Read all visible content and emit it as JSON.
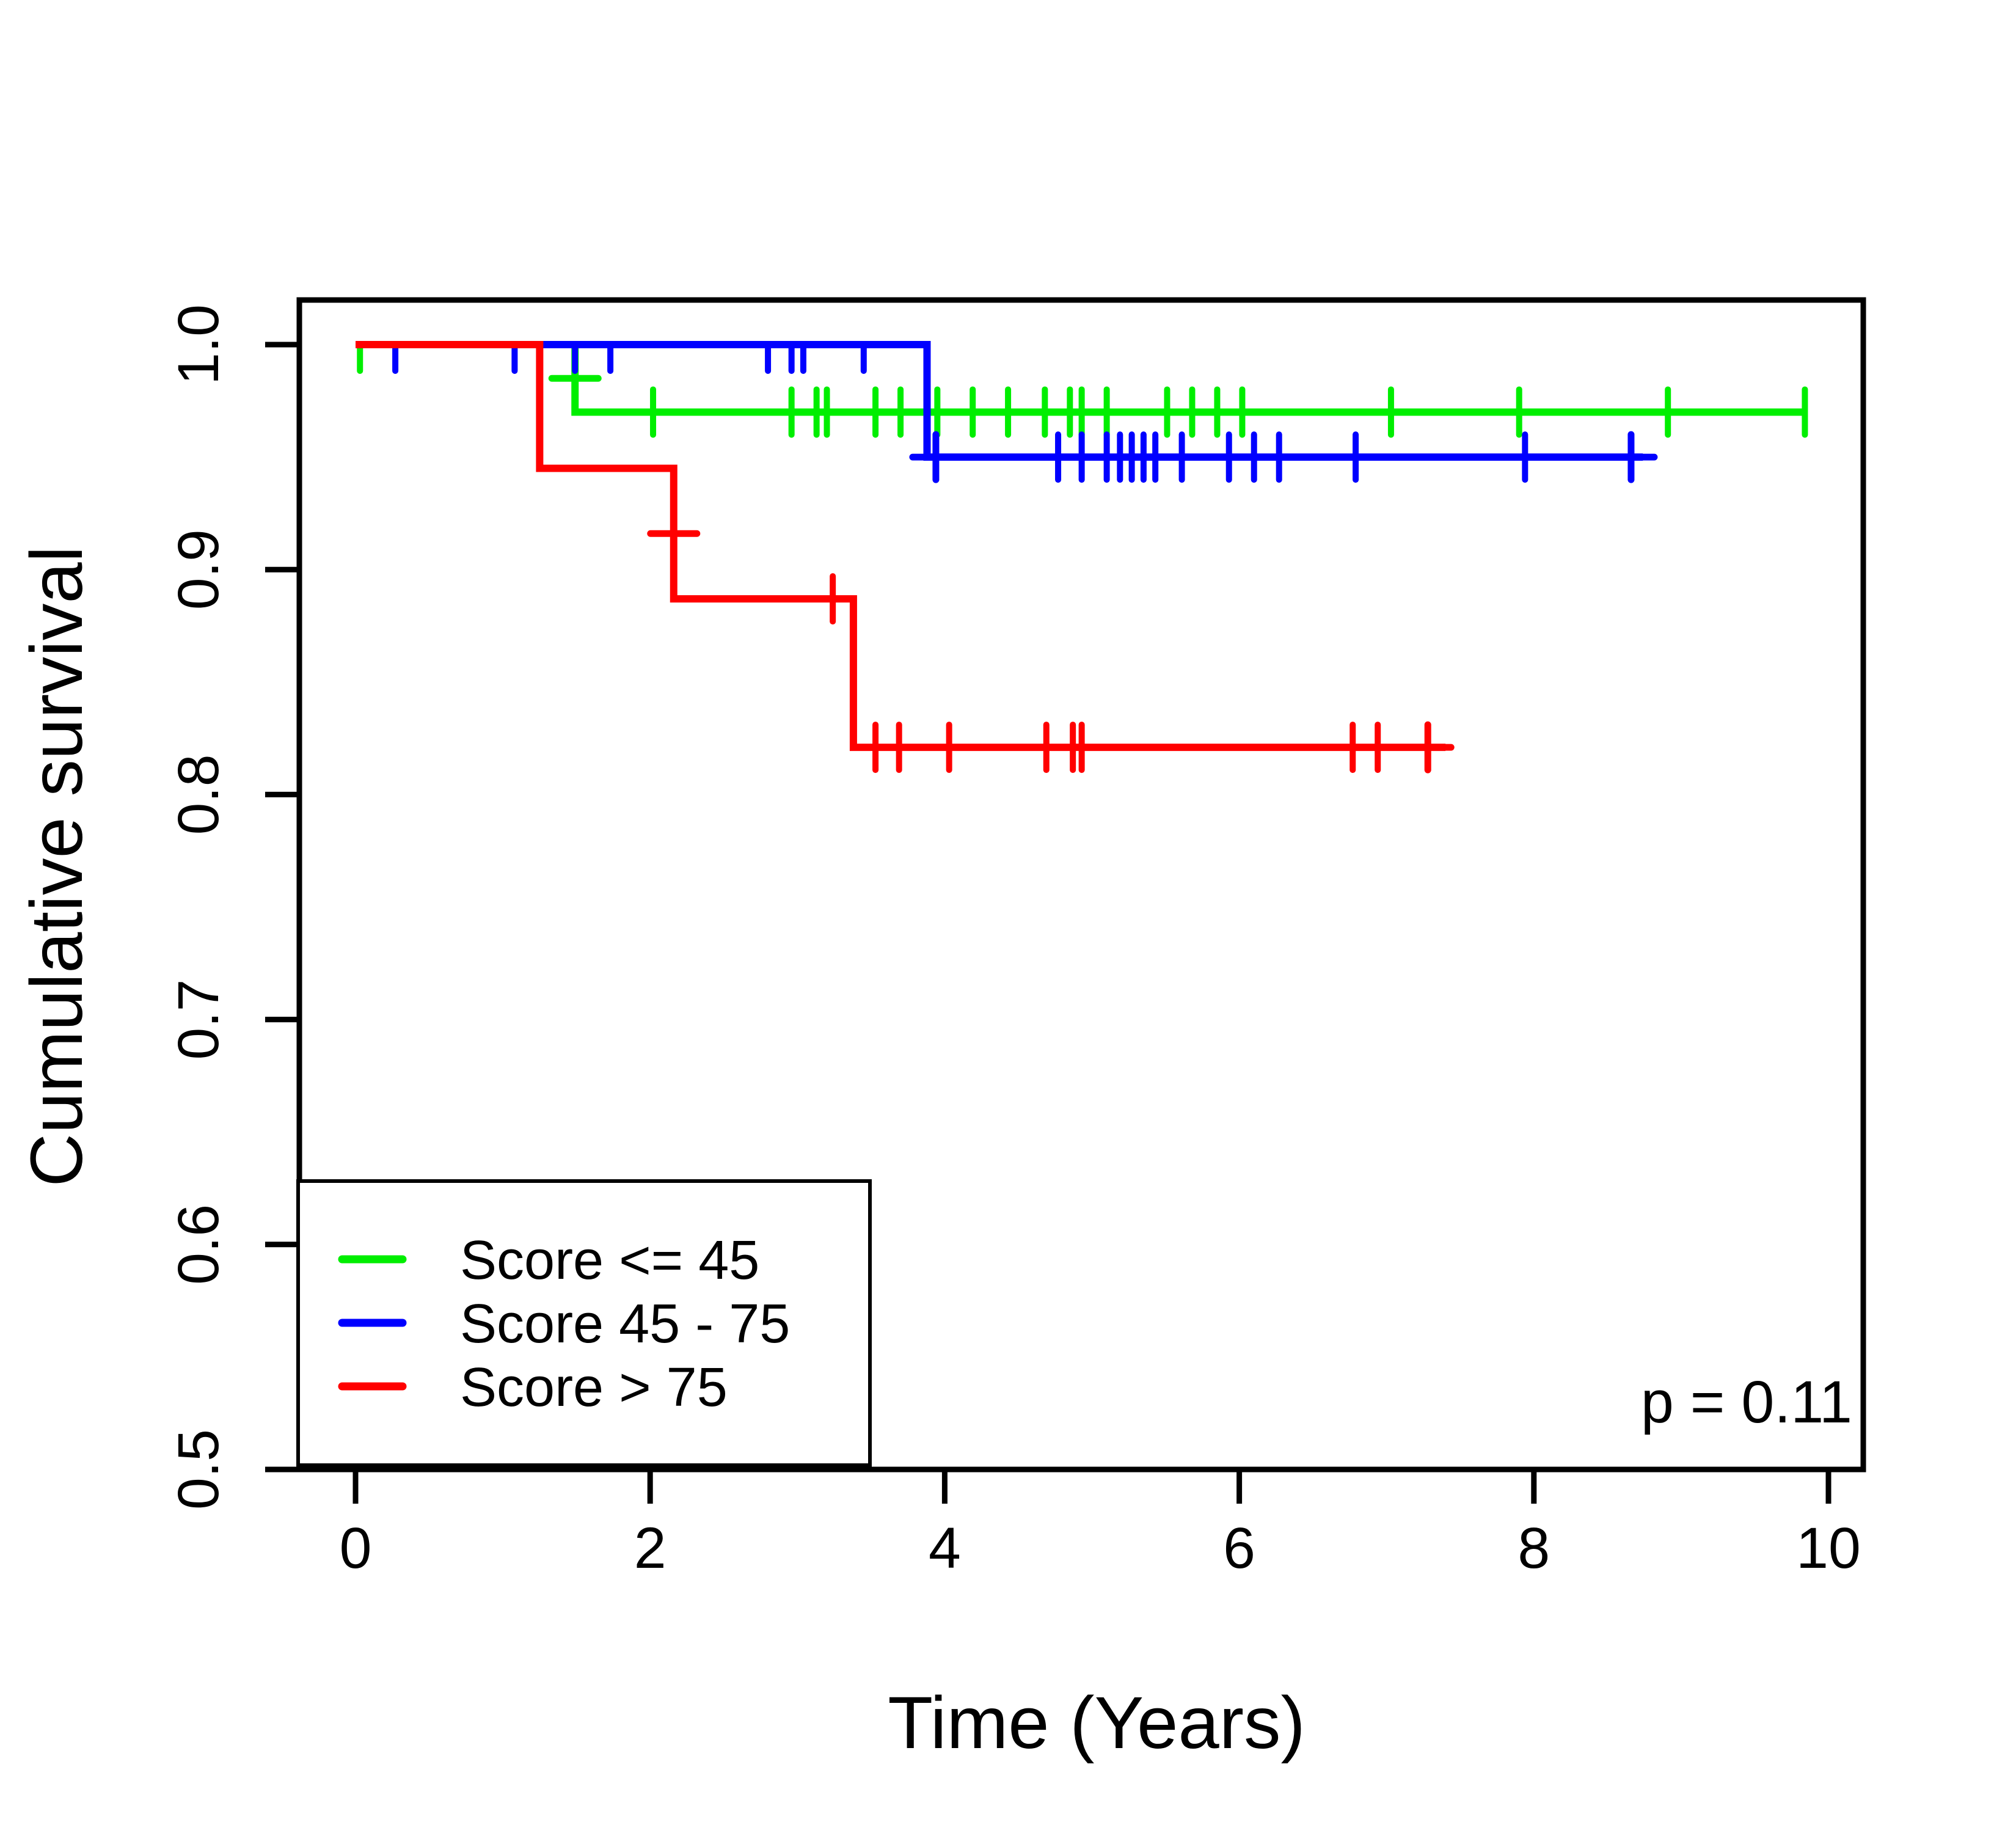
{
  "figure": {
    "kind": "kaplan-meier-survival-plot",
    "background_color": "#ffffff",
    "frame_color": "#000000"
  },
  "chart_data": {
    "type": "line",
    "subtype": "kaplan-meier-step",
    "title": "",
    "xlabel": "Time (Years)",
    "ylabel": "Cumulative survival",
    "xlim": [
      0,
      10
    ],
    "ylim": [
      0.5,
      1.0
    ],
    "grid": false,
    "legend_position": "bottom-left",
    "x_ticks": {
      "values": [
        0,
        2,
        4,
        6,
        8,
        10
      ],
      "labels": [
        "0",
        "2",
        "4",
        "6",
        "8",
        "10"
      ]
    },
    "y_ticks": {
      "values": [
        1.0,
        0.9,
        0.8,
        0.7,
        0.6,
        0.5
      ],
      "labels": [
        "1.0",
        "0.9",
        "0.8",
        "0.7",
        "0.6",
        "0.5"
      ]
    },
    "annotation": {
      "text": "p = 0.11",
      "x": 9.6,
      "y": 0.521
    },
    "legend": {
      "entries": [
        {
          "label": "Score <= 45",
          "color": "#00ee00"
        },
        {
          "label": "Score 45 - 75",
          "color": "#0000ff"
        },
        {
          "label": "Score > 75",
          "color": "#ff0000"
        }
      ]
    },
    "series": [
      {
        "name": "Score <= 45",
        "color": "#00ee00",
        "steps": [
          [
            0,
            1.0
          ],
          [
            1.49,
            1.0
          ],
          [
            1.49,
            0.97
          ],
          [
            9.85,
            0.97
          ]
        ],
        "censors": [
          {
            "x": 0.03,
            "y": 1.0,
            "style": "below"
          },
          {
            "x": 1.49,
            "y": 0.985,
            "style": "plus"
          },
          {
            "x": 2.02,
            "y": 0.97,
            "style": "tick"
          },
          {
            "x": 2.96,
            "y": 0.97,
            "style": "tick"
          },
          {
            "x": 3.13,
            "y": 0.97,
            "style": "tick"
          },
          {
            "x": 3.2,
            "y": 0.97,
            "style": "tick"
          },
          {
            "x": 3.53,
            "y": 0.97,
            "style": "tick"
          },
          {
            "x": 3.7,
            "y": 0.97,
            "style": "tick"
          },
          {
            "x": 3.95,
            "y": 0.97,
            "style": "tick"
          },
          {
            "x": 4.19,
            "y": 0.97,
            "style": "tick"
          },
          {
            "x": 4.43,
            "y": 0.97,
            "style": "tick"
          },
          {
            "x": 4.68,
            "y": 0.97,
            "style": "tick"
          },
          {
            "x": 4.85,
            "y": 0.97,
            "style": "tick"
          },
          {
            "x": 4.93,
            "y": 0.97,
            "style": "tick"
          },
          {
            "x": 5.1,
            "y": 0.97,
            "style": "tick"
          },
          {
            "x": 5.51,
            "y": 0.97,
            "style": "tick"
          },
          {
            "x": 5.68,
            "y": 0.97,
            "style": "tick"
          },
          {
            "x": 5.85,
            "y": 0.97,
            "style": "tick"
          },
          {
            "x": 6.02,
            "y": 0.97,
            "style": "tick"
          },
          {
            "x": 7.03,
            "y": 0.97,
            "style": "tick"
          },
          {
            "x": 7.9,
            "y": 0.97,
            "style": "tick"
          },
          {
            "x": 8.91,
            "y": 0.97,
            "style": "tick"
          },
          {
            "x": 9.84,
            "y": 0.97,
            "style": "tick"
          }
        ]
      },
      {
        "name": "Score 45 - 75",
        "color": "#0000ff",
        "steps": [
          [
            0,
            1.0
          ],
          [
            3.88,
            1.0
          ],
          [
            3.88,
            0.95
          ],
          [
            8.74,
            0.95
          ]
        ],
        "censors": [
          {
            "x": 0.27,
            "y": 1.0,
            "style": "below"
          },
          {
            "x": 1.08,
            "y": 1.0,
            "style": "below"
          },
          {
            "x": 1.49,
            "y": 1.0,
            "style": "below"
          },
          {
            "x": 1.73,
            "y": 1.0,
            "style": "below"
          },
          {
            "x": 2.8,
            "y": 1.0,
            "style": "below"
          },
          {
            "x": 2.96,
            "y": 1.0,
            "style": "below"
          },
          {
            "x": 3.04,
            "y": 1.0,
            "style": "below"
          },
          {
            "x": 3.45,
            "y": 1.0,
            "style": "below"
          },
          {
            "x": 3.94,
            "y": 0.95,
            "style": "plus"
          },
          {
            "x": 4.77,
            "y": 0.95,
            "style": "tick"
          },
          {
            "x": 4.93,
            "y": 0.95,
            "style": "tick"
          },
          {
            "x": 5.1,
            "y": 0.95,
            "style": "tick"
          },
          {
            "x": 5.19,
            "y": 0.95,
            "style": "tick"
          },
          {
            "x": 5.27,
            "y": 0.95,
            "style": "tick"
          },
          {
            "x": 5.35,
            "y": 0.95,
            "style": "tick"
          },
          {
            "x": 5.43,
            "y": 0.95,
            "style": "tick"
          },
          {
            "x": 5.61,
            "y": 0.95,
            "style": "tick"
          },
          {
            "x": 5.93,
            "y": 0.95,
            "style": "tick"
          },
          {
            "x": 6.1,
            "y": 0.95,
            "style": "tick"
          },
          {
            "x": 6.27,
            "y": 0.95,
            "style": "tick"
          },
          {
            "x": 6.79,
            "y": 0.95,
            "style": "tick"
          },
          {
            "x": 7.94,
            "y": 0.95,
            "style": "tick"
          },
          {
            "x": 8.66,
            "y": 0.95,
            "style": "plus"
          }
        ]
      },
      {
        "name": "Score > 75",
        "color": "#ff0000",
        "steps": [
          [
            0,
            1.0
          ],
          [
            1.25,
            1.0
          ],
          [
            1.25,
            0.945
          ],
          [
            2.16,
            0.945
          ],
          [
            2.16,
            0.887
          ],
          [
            3.38,
            0.887
          ],
          [
            3.38,
            0.821
          ],
          [
            7.4,
            0.821
          ]
        ],
        "censors": [
          {
            "x": 2.16,
            "y": 0.916,
            "style": "plus"
          },
          {
            "x": 3.24,
            "y": 0.887,
            "style": "tick"
          },
          {
            "x": 3.53,
            "y": 0.821,
            "style": "tick"
          },
          {
            "x": 3.69,
            "y": 0.821,
            "style": "tick"
          },
          {
            "x": 4.03,
            "y": 0.821,
            "style": "tick"
          },
          {
            "x": 4.69,
            "y": 0.821,
            "style": "tick"
          },
          {
            "x": 4.87,
            "y": 0.821,
            "style": "tick"
          },
          {
            "x": 4.93,
            "y": 0.821,
            "style": "tick"
          },
          {
            "x": 6.77,
            "y": 0.821,
            "style": "tick"
          },
          {
            "x": 6.94,
            "y": 0.821,
            "style": "tick"
          },
          {
            "x": 7.28,
            "y": 0.821,
            "style": "plus"
          }
        ]
      }
    ]
  }
}
